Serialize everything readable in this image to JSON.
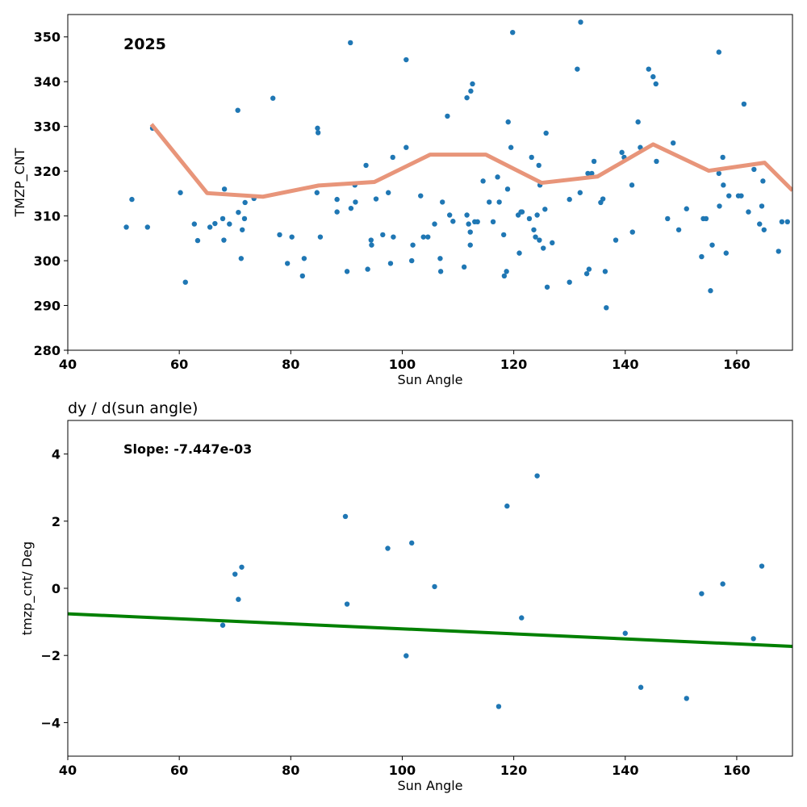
{
  "chart_data": [
    {
      "type": "scatter",
      "title": "",
      "annotation": "2025",
      "xlabel": "Sun Angle",
      "ylabel": "TMZP_CNT",
      "xlim": [
        40,
        170
      ],
      "ylim": [
        280,
        355
      ],
      "xticks": [
        40,
        60,
        80,
        100,
        120,
        140,
        160
      ],
      "yticks": [
        280,
        290,
        300,
        310,
        320,
        330,
        340,
        350
      ],
      "grid": false,
      "point_color": "#1f77b4",
      "line_color": "#e8957a",
      "series": [
        {
          "kind": "scatter",
          "points": [
            [
              50.5,
              307.5
            ],
            [
              51.5,
              313.7
            ],
            [
              54.3,
              307.5
            ],
            [
              55.2,
              329.6
            ],
            [
              60.2,
              315.2
            ],
            [
              61.1,
              295.2
            ],
            [
              62.7,
              308.2
            ],
            [
              63.3,
              304.5
            ],
            [
              65.5,
              307.5
            ],
            [
              66.4,
              308.3
            ],
            [
              67.8,
              309.4
            ],
            [
              68.0,
              304.6
            ],
            [
              68.1,
              316.0
            ],
            [
              69.0,
              308.2
            ],
            [
              70.5,
              333.6
            ],
            [
              70.6,
              310.8
            ],
            [
              71.1,
              300.5
            ],
            [
              71.3,
              306.9
            ],
            [
              71.7,
              309.4
            ],
            [
              71.8,
              313.0
            ],
            [
              73.4,
              313.9
            ],
            [
              76.8,
              336.3
            ],
            [
              78.0,
              305.8
            ],
            [
              79.4,
              299.4
            ],
            [
              80.2,
              305.3
            ],
            [
              82.1,
              296.6
            ],
            [
              82.4,
              300.5
            ],
            [
              84.7,
              315.2
            ],
            [
              84.8,
              329.6
            ],
            [
              84.9,
              328.6
            ],
            [
              85.3,
              305.3
            ],
            [
              88.3,
              313.7
            ],
            [
              88.3,
              310.9
            ],
            [
              90.1,
              297.6
            ],
            [
              90.7,
              348.7
            ],
            [
              90.8,
              311.7
            ],
            [
              91.5,
              316.9
            ],
            [
              91.6,
              313.1
            ],
            [
              93.5,
              321.3
            ],
            [
              93.8,
              298.1
            ],
            [
              94.4,
              304.6
            ],
            [
              94.5,
              303.5
            ],
            [
              95.3,
              313.8
            ],
            [
              96.5,
              305.8
            ],
            [
              97.5,
              315.2
            ],
            [
              97.9,
              299.4
            ],
            [
              98.3,
              323.1
            ],
            [
              98.4,
              305.3
            ],
            [
              100.7,
              325.3
            ],
            [
              100.7,
              344.9
            ],
            [
              101.7,
              300.0
            ],
            [
              101.9,
              303.5
            ],
            [
              103.3,
              314.5
            ],
            [
              103.8,
              305.3
            ],
            [
              104.6,
              305.3
            ],
            [
              105.8,
              308.2
            ],
            [
              106.8,
              300.5
            ],
            [
              106.9,
              297.6
            ],
            [
              107.2,
              313.1
            ],
            [
              108.1,
              332.3
            ],
            [
              108.5,
              310.2
            ],
            [
              109.1,
              308.8
            ],
            [
              111.1,
              298.6
            ],
            [
              111.6,
              336.4
            ],
            [
              111.6,
              310.2
            ],
            [
              111.9,
              308.2
            ],
            [
              112.2,
              303.5
            ],
            [
              112.2,
              306.4
            ],
            [
              112.3,
              337.9
            ],
            [
              112.6,
              339.5
            ],
            [
              113.0,
              308.7
            ],
            [
              113.5,
              308.7
            ],
            [
              114.5,
              317.8
            ],
            [
              115.6,
              313.1
            ],
            [
              116.3,
              308.7
            ],
            [
              117.1,
              318.7
            ],
            [
              117.4,
              313.1
            ],
            [
              118.2,
              305.8
            ],
            [
              118.3,
              296.6
            ],
            [
              118.7,
              297.6
            ],
            [
              118.9,
              316.0
            ],
            [
              119.0,
              331.0
            ],
            [
              119.5,
              325.3
            ],
            [
              119.8,
              351.0
            ],
            [
              120.8,
              310.2
            ],
            [
              121.0,
              301.7
            ],
            [
              121.3,
              310.9
            ],
            [
              121.5,
              310.9
            ],
            [
              122.8,
              309.4
            ],
            [
              123.2,
              323.1
            ],
            [
              123.6,
              306.9
            ],
            [
              123.9,
              305.3
            ],
            [
              124.2,
              310.2
            ],
            [
              124.5,
              321.3
            ],
            [
              124.6,
              304.6
            ],
            [
              124.7,
              316.9
            ],
            [
              125.3,
              302.8
            ],
            [
              125.6,
              311.5
            ],
            [
              125.8,
              328.5
            ],
            [
              126.0,
              294.1
            ],
            [
              126.9,
              304.0
            ],
            [
              130.0,
              295.2
            ],
            [
              130.0,
              313.7
            ],
            [
              131.4,
              342.8
            ],
            [
              131.9,
              315.2
            ],
            [
              132.0,
              353.3
            ],
            [
              133.1,
              297.1
            ],
            [
              133.3,
              319.5
            ],
            [
              133.5,
              298.1
            ],
            [
              134.0,
              319.5
            ],
            [
              134.4,
              322.2
            ],
            [
              135.6,
              313.0
            ],
            [
              136.0,
              313.8
            ],
            [
              136.4,
              297.6
            ],
            [
              136.6,
              289.5
            ],
            [
              138.3,
              304.6
            ],
            [
              139.4,
              324.2
            ],
            [
              139.8,
              323.1
            ],
            [
              141.2,
              316.9
            ],
            [
              141.3,
              306.4
            ],
            [
              142.3,
              331.0
            ],
            [
              142.7,
              325.3
            ],
            [
              144.2,
              342.8
            ],
            [
              145.0,
              341.1
            ],
            [
              145.5,
              339.5
            ],
            [
              145.6,
              322.2
            ],
            [
              147.6,
              309.4
            ],
            [
              148.6,
              326.3
            ],
            [
              149.6,
              306.9
            ],
            [
              151.0,
              311.6
            ],
            [
              153.7,
              300.9
            ],
            [
              154.0,
              309.4
            ],
            [
              154.5,
              309.4
            ],
            [
              155.3,
              293.3
            ],
            [
              155.6,
              303.5
            ],
            [
              156.8,
              346.6
            ],
            [
              156.8,
              319.5
            ],
            [
              156.9,
              312.2
            ],
            [
              157.5,
              323.1
            ],
            [
              157.6,
              316.9
            ],
            [
              158.1,
              301.7
            ],
            [
              158.6,
              314.5
            ],
            [
              160.3,
              314.5
            ],
            [
              160.8,
              314.5
            ],
            [
              161.3,
              335.0
            ],
            [
              162.1,
              310.9
            ],
            [
              163.1,
              320.4
            ],
            [
              164.1,
              308.2
            ],
            [
              164.5,
              312.2
            ],
            [
              164.7,
              317.8
            ],
            [
              164.9,
              306.9
            ],
            [
              167.5,
              302.1
            ],
            [
              168.1,
              308.7
            ],
            [
              169.1,
              308.7
            ]
          ]
        },
        {
          "kind": "line",
          "x": [
            55,
            65,
            75,
            85,
            95,
            105,
            115,
            125,
            135,
            145,
            155,
            165,
            170
          ],
          "y": [
            330.5,
            315.1,
            314.3,
            316.8,
            317.6,
            323.7,
            323.7,
            317.4,
            318.8,
            326.0,
            320.1,
            321.9,
            315.7
          ]
        }
      ]
    },
    {
      "type": "scatter",
      "title": "dy / d(sun angle)",
      "annotation": "Slope: -7.447e-03",
      "xlabel": "Sun Angle",
      "ylabel": "tmzp_cnt/ Deg",
      "xlim": [
        40,
        170
      ],
      "ylim": [
        -5,
        5
      ],
      "xticks": [
        40,
        60,
        80,
        100,
        120,
        140,
        160
      ],
      "yticks": [
        -4,
        -2,
        0,
        2,
        4
      ],
      "ytick_labels": [
        "−4",
        "−2",
        "0",
        "2",
        "4"
      ],
      "grid": false,
      "point_color": "#1f77b4",
      "line_color": "#008000",
      "series": [
        {
          "kind": "scatter",
          "points": [
            [
              67.8,
              -1.1
            ],
            [
              70.0,
              0.42
            ],
            [
              70.6,
              -0.33
            ],
            [
              71.2,
              0.63
            ],
            [
              89.8,
              2.14
            ],
            [
              90.1,
              -0.47
            ],
            [
              97.4,
              1.19
            ],
            [
              100.7,
              -2.01
            ],
            [
              101.7,
              1.35
            ],
            [
              105.8,
              0.05
            ],
            [
              117.3,
              -3.52
            ],
            [
              118.8,
              2.45
            ],
            [
              121.4,
              -0.88
            ],
            [
              124.2,
              3.35
            ],
            [
              140.0,
              -1.34
            ],
            [
              142.8,
              -2.95
            ],
            [
              151.0,
              -3.28
            ],
            [
              153.7,
              -0.16
            ],
            [
              157.5,
              0.13
            ],
            [
              163.0,
              -1.5
            ],
            [
              164.5,
              0.66
            ]
          ]
        },
        {
          "kind": "line",
          "x": [
            40,
            170
          ],
          "y": [
            -0.76,
            -1.73
          ]
        }
      ]
    }
  ]
}
